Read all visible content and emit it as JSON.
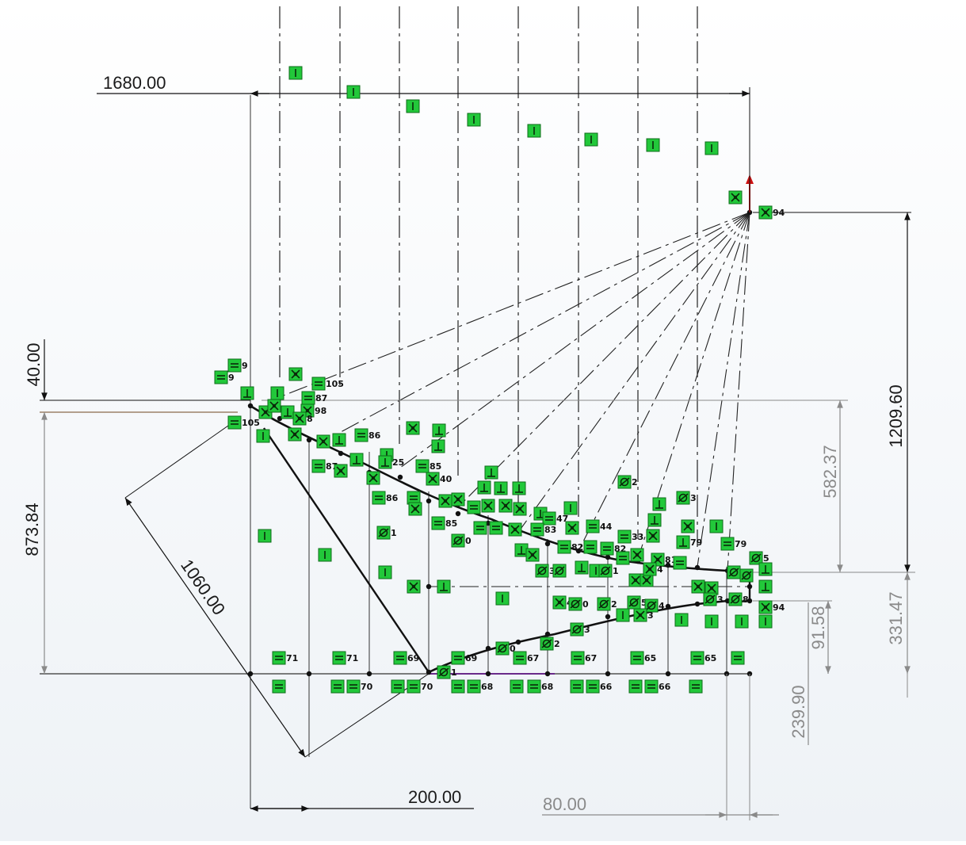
{
  "colors": {
    "relation_fill": "#22c83a",
    "relation_border": "#0e6b1a",
    "geometry": "#111111",
    "driven_dimension": "#8a8a8a",
    "origin_arrow": "#cc1111"
  },
  "dimensions": {
    "width_top": "1680.00",
    "height_right": "1209.60",
    "offset_left": "40.00",
    "height_left": "873.84",
    "diagonal": "1060.00",
    "vertical_1": "582.37",
    "vertical_2": "331.47",
    "vertical_3": "91.58",
    "vertical_4": "239.90",
    "bottom_width": "200.00",
    "bottom_right": "80.00"
  },
  "relation_labels": {
    "r9a": "9",
    "r9b": "9",
    "r105a": "105",
    "r105b": "105",
    "r87a": "87",
    "r87b": "87",
    "r8": "8",
    "r98": "98",
    "r86a": "86",
    "r86b": "86",
    "r25": "25",
    "r85a": "85",
    "r85b": "85",
    "r40": "40",
    "r35": "35",
    "r84": "84",
    "r1a": "1",
    "r0a": "0",
    "r47": "47",
    "r83": "83",
    "r82": "82",
    "r44": "44",
    "r33": "33",
    "r81": "81",
    "r79a": "79",
    "r79b": "79",
    "r5": "5",
    "r94a": "94",
    "r94b": "94",
    "r2top": "2",
    "r3top": "3",
    "r3mid": "3",
    "r1mid": "1",
    "r4mid": "4",
    "r0mid": "0",
    "r2mid": "2",
    "r5mid": "5",
    "r4b": "4",
    "r3b": "3",
    "r8b": "8",
    "r3c": "3",
    "r8c": "8",
    "r0low": "0",
    "r2low": "2",
    "r3low": "3",
    "r71a": "71",
    "r71b": "71",
    "r69a": "69",
    "r69b": "69",
    "r67a": "67",
    "r67b": "67",
    "r65a": "65",
    "r65b": "65",
    "r1low": "1",
    "r70a": "70",
    "r70b": "70",
    "r68a": "68",
    "r68b": "68",
    "r66a": "66",
    "r66b": "66"
  }
}
